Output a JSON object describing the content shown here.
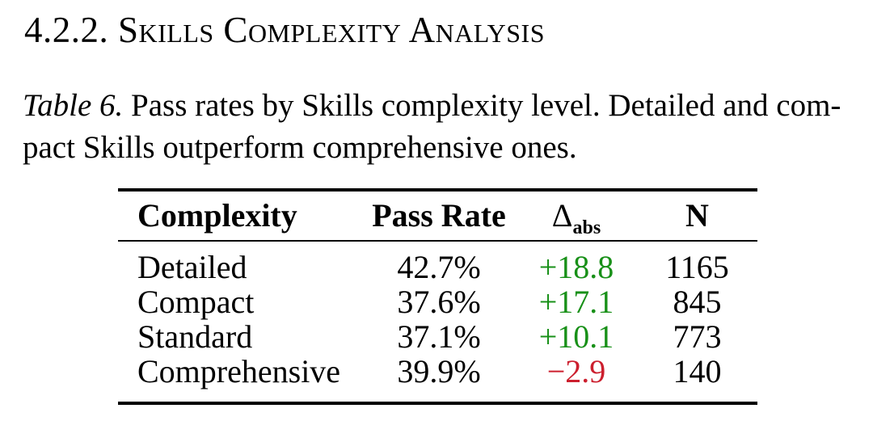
{
  "section": {
    "heading": "4.2.2. Skills Complexity Analysis"
  },
  "caption": {
    "label": "Table 6.",
    "line1": "Pass rates by Skills complexity level. Detailed and com-",
    "line2": "pact Skills outperform comprehensive ones."
  },
  "table": {
    "headers": {
      "complexity": "Complexity",
      "pass_rate": "Pass Rate",
      "delta_symbol": "Δ",
      "delta_subscript": "abs",
      "n": "N"
    },
    "rows": [
      {
        "complexity": "Detailed",
        "pass_rate": "42.7%",
        "delta": "+18.8",
        "delta_sign": "positive",
        "n": "1165"
      },
      {
        "complexity": "Compact",
        "pass_rate": "37.6%",
        "delta": "+17.1",
        "delta_sign": "positive",
        "n": "845"
      },
      {
        "complexity": "Standard",
        "pass_rate": "37.1%",
        "delta": "+10.1",
        "delta_sign": "positive",
        "n": "773"
      },
      {
        "complexity": "Comprehensive",
        "pass_rate": "39.9%",
        "delta": "−2.9",
        "delta_sign": "negative",
        "n": "140"
      }
    ],
    "colors": {
      "positive_delta": "#189018",
      "negative_delta": "#cc1f2e"
    }
  }
}
